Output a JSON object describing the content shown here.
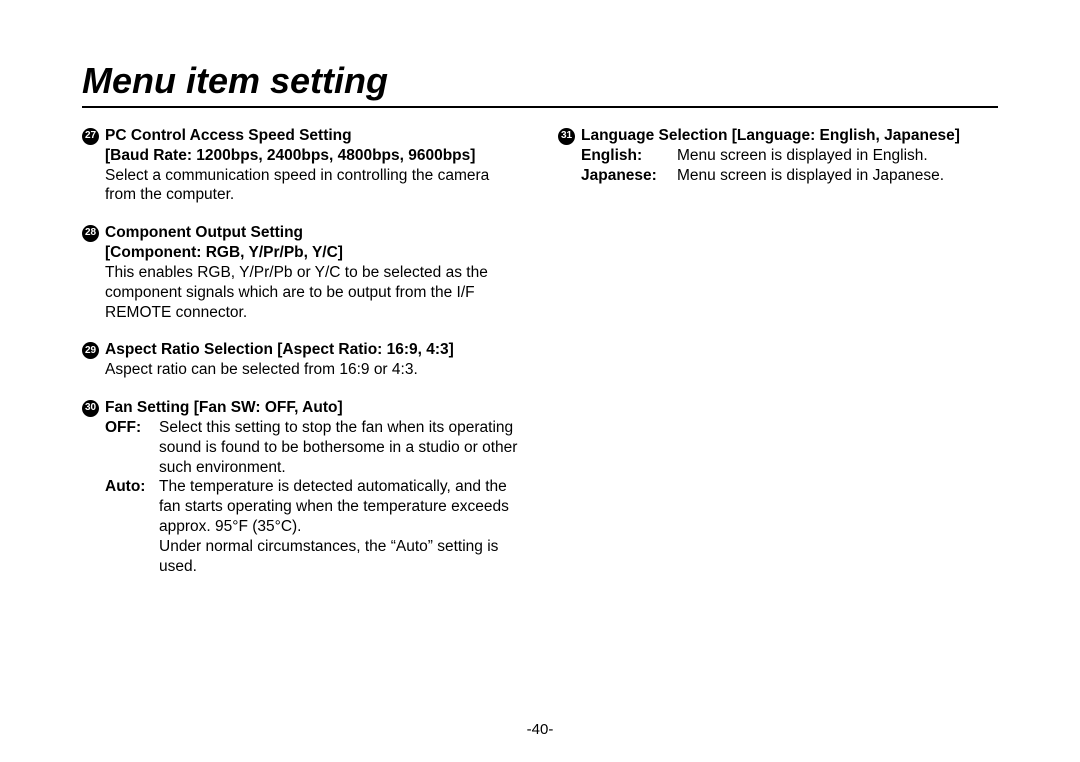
{
  "title": "Menu item setting",
  "page_number": "-40-",
  "left": {
    "s27": {
      "num": "27",
      "h1": "PC Control Access Speed Setting",
      "h2": "[Baud Rate: 1200bps, 2400bps, 4800bps, 9600bps]",
      "body": "Select a communication speed in controlling the camera from the computer."
    },
    "s28": {
      "num": "28",
      "h1": "Component Output Setting",
      "h2": "[Component: RGB, Y/Pr/Pb, Y/C]",
      "body": "This enables RGB, Y/Pr/Pb or Y/C to be selected as the component signals which are to be output from the I/F REMOTE connector."
    },
    "s29": {
      "num": "29",
      "h1": "Aspect Ratio Selection [Aspect Ratio: 16:9, 4:3]",
      "body": "Aspect ratio can be selected from 16:9 or 4:3."
    },
    "s30": {
      "num": "30",
      "h1": "Fan Setting [Fan SW: OFF, Auto]",
      "off_term": "OFF:",
      "off_desc": "Select this setting to stop the fan when its operating sound is found to be bothersome in a studio or other such environment.",
      "auto_term": "Auto:",
      "auto_desc1": "The temperature is detected automatically, and the fan starts operating when the temperature exceeds approx. 95°F (35°C).",
      "auto_desc2": "Under normal circumstances, the “Auto” setting is used."
    }
  },
  "right": {
    "s31": {
      "num": "31",
      "h1": "Language Selection [Language: English, Japanese]",
      "en_term": "English:",
      "en_desc": "Menu screen is displayed in English.",
      "jp_term": "Japanese:",
      "jp_desc": "Menu screen is displayed in Japanese."
    }
  }
}
